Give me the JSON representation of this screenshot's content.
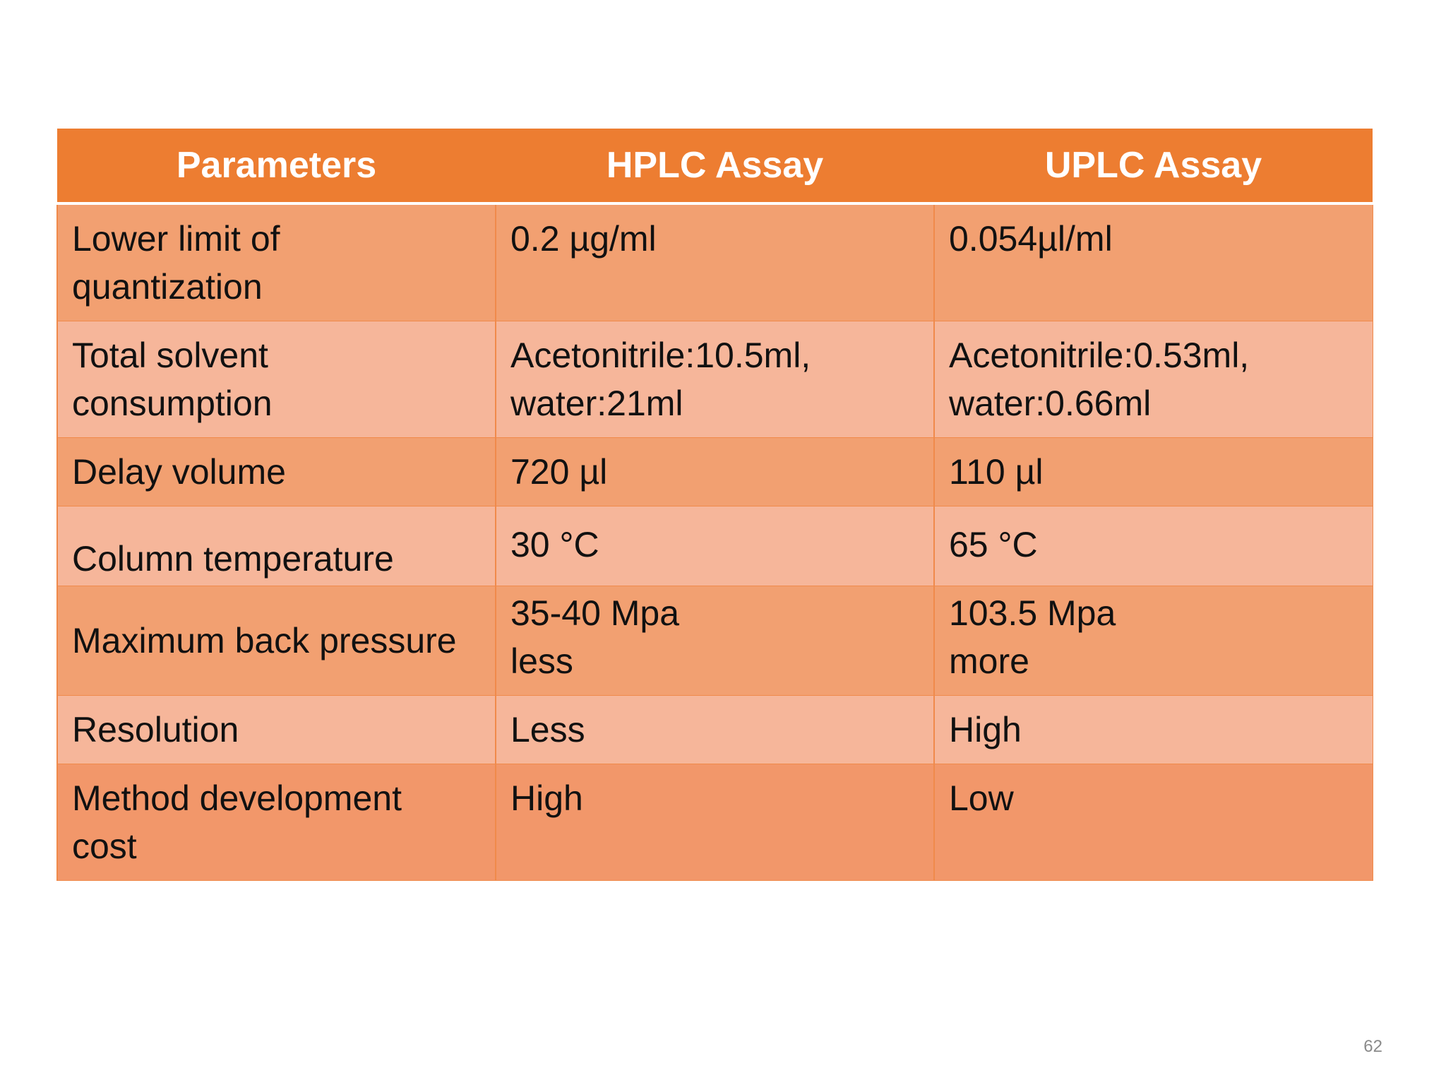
{
  "table": {
    "headers": [
      "Parameters",
      "HPLC Assay",
      "UPLC Assay"
    ],
    "rows": [
      {
        "param": [
          "Lower limit of",
          "quantization"
        ],
        "hplc": [
          "0.2 µg/ml"
        ],
        "uplc": [
          "0.054µl/ml"
        ]
      },
      {
        "param": [
          "Total solvent",
          "consumption"
        ],
        "hplc": [
          "Acetonitrile:10.5ml,",
          "water:21ml"
        ],
        "uplc": [
          "Acetonitrile:0.53ml,",
          "water:0.66ml"
        ]
      },
      {
        "param": [
          "Delay volume"
        ],
        "hplc": [
          "720 µl"
        ],
        "uplc": [
          "110 µl"
        ]
      },
      {
        "param": [
          "Column temperature"
        ],
        "hplc": [
          "30 °C"
        ],
        "uplc": [
          "65 °C"
        ]
      },
      {
        "param": [
          "Maximum back pressure"
        ],
        "hplc": [
          "35-40 Mpa",
          "less"
        ],
        "uplc": [
          "103.5 Mpa",
          "more"
        ]
      },
      {
        "param": [
          "Resolution"
        ],
        "hplc": [
          "Less"
        ],
        "uplc": [
          "High"
        ]
      },
      {
        "param": [
          "Method development",
          "cost"
        ],
        "hplc": [
          "High"
        ],
        "uplc": [
          "Low"
        ]
      }
    ]
  },
  "colors": {
    "header_bg": "#ed7d31",
    "row_dark": "#f2a071",
    "row_light": "#f6b69a"
  },
  "page_number": "62"
}
